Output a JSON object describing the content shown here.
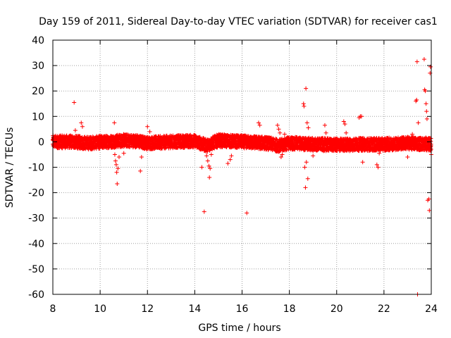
{
  "chart_data": {
    "type": "scatter",
    "title": "Day 159 of 2011, Sidereal Day-to-day VTEC variation (SDTVAR) for receiver cas1",
    "xlabel": "GPS time / hours",
    "ylabel": "SDTVAR / TECUs",
    "xlim": [
      8,
      24
    ],
    "ylim": [
      -60,
      40
    ],
    "x_ticks": [
      8,
      10,
      12,
      14,
      16,
      18,
      20,
      22,
      24
    ],
    "y_ticks": [
      40,
      30,
      20,
      10,
      0,
      -10,
      -20,
      -30,
      -40,
      -50,
      -60
    ],
    "grid": true,
    "marker": "+",
    "color": "#ff0000",
    "band": {
      "x_start": 8.0,
      "x_end": 24.0,
      "step": 0.01,
      "center": [
        [
          8.0,
          0.0
        ],
        [
          8.8,
          0.0
        ],
        [
          9.5,
          -0.5
        ],
        [
          10.3,
          0.0
        ],
        [
          11.0,
          0.5
        ],
        [
          11.5,
          0.3
        ],
        [
          12.0,
          -0.5
        ],
        [
          13.0,
          0.0
        ],
        [
          14.0,
          0.3
        ],
        [
          14.5,
          -1.5
        ],
        [
          15.0,
          0.5
        ],
        [
          16.0,
          0.0
        ],
        [
          17.0,
          -0.5
        ],
        [
          17.6,
          -1.5
        ],
        [
          18.0,
          -0.5
        ],
        [
          19.0,
          -1.0
        ],
        [
          20.0,
          -1.2
        ],
        [
          21.0,
          -1.0
        ],
        [
          22.0,
          -1.0
        ],
        [
          23.0,
          -0.5
        ],
        [
          24.0,
          -1.0
        ]
      ],
      "half_width": 2.5
    },
    "scatter_points": [
      [
        8.9,
        15.5
      ],
      [
        8.95,
        4.5
      ],
      [
        9.2,
        7.5
      ],
      [
        9.25,
        6.0
      ],
      [
        9.3,
        -2.5
      ],
      [
        10.6,
        7.5
      ],
      [
        10.62,
        -5.0
      ],
      [
        10.65,
        -7.5
      ],
      [
        10.68,
        -9.0
      ],
      [
        10.7,
        -12.0
      ],
      [
        10.72,
        -16.5
      ],
      [
        10.75,
        -10.5
      ],
      [
        10.8,
        -6.0
      ],
      [
        11.0,
        -4.5
      ],
      [
        11.7,
        -11.5
      ],
      [
        11.75,
        -6.0
      ],
      [
        12.0,
        6.0
      ],
      [
        12.1,
        4.0
      ],
      [
        12.6,
        -2.5
      ],
      [
        14.3,
        -10.0
      ],
      [
        14.4,
        -27.5
      ],
      [
        14.5,
        -5.5
      ],
      [
        14.55,
        -7.5
      ],
      [
        14.6,
        -9.5
      ],
      [
        14.62,
        -14.0
      ],
      [
        14.65,
        -10.5
      ],
      [
        14.7,
        -5.0
      ],
      [
        15.4,
        -8.5
      ],
      [
        15.5,
        -7.0
      ],
      [
        15.55,
        -5.5
      ],
      [
        16.2,
        -28.0
      ],
      [
        16.7,
        7.5
      ],
      [
        16.75,
        6.5
      ],
      [
        17.5,
        6.5
      ],
      [
        17.55,
        5.0
      ],
      [
        17.6,
        3.5
      ],
      [
        17.65,
        -6.0
      ],
      [
        17.7,
        -5.0
      ],
      [
        17.8,
        3.0
      ],
      [
        18.6,
        15.0
      ],
      [
        18.62,
        14.0
      ],
      [
        18.65,
        -10.0
      ],
      [
        18.68,
        -18.0
      ],
      [
        18.7,
        21.0
      ],
      [
        18.72,
        -8.0
      ],
      [
        18.75,
        7.5
      ],
      [
        18.78,
        -14.5
      ],
      [
        18.8,
        5.5
      ],
      [
        19.0,
        -5.5
      ],
      [
        19.1,
        -3.0
      ],
      [
        19.5,
        6.5
      ],
      [
        19.55,
        3.5
      ],
      [
        20.3,
        8.0
      ],
      [
        20.35,
        7.0
      ],
      [
        20.4,
        3.5
      ],
      [
        20.95,
        9.5
      ],
      [
        21.0,
        10.0
      ],
      [
        21.05,
        10.0
      ],
      [
        21.1,
        -8.0
      ],
      [
        21.7,
        -9.0
      ],
      [
        21.75,
        -10.0
      ],
      [
        21.8,
        -4.5
      ],
      [
        23.0,
        -6.0
      ],
      [
        23.2,
        3.0
      ],
      [
        23.35,
        16.0
      ],
      [
        23.38,
        16.5
      ],
      [
        23.4,
        31.5
      ],
      [
        23.42,
        -60.0
      ],
      [
        23.45,
        7.5
      ],
      [
        23.5,
        -3.0
      ],
      [
        23.7,
        32.5
      ],
      [
        23.72,
        20.5
      ],
      [
        23.75,
        20.0
      ],
      [
        23.78,
        15.0
      ],
      [
        23.8,
        12.0
      ],
      [
        23.82,
        9.0
      ],
      [
        23.85,
        -23.0
      ],
      [
        23.9,
        -22.5
      ],
      [
        23.92,
        -27.0
      ],
      [
        23.95,
        27.0
      ],
      [
        23.97,
        29.5
      ],
      [
        23.98,
        -3.0
      ],
      [
        24.0,
        -5.0
      ]
    ]
  }
}
